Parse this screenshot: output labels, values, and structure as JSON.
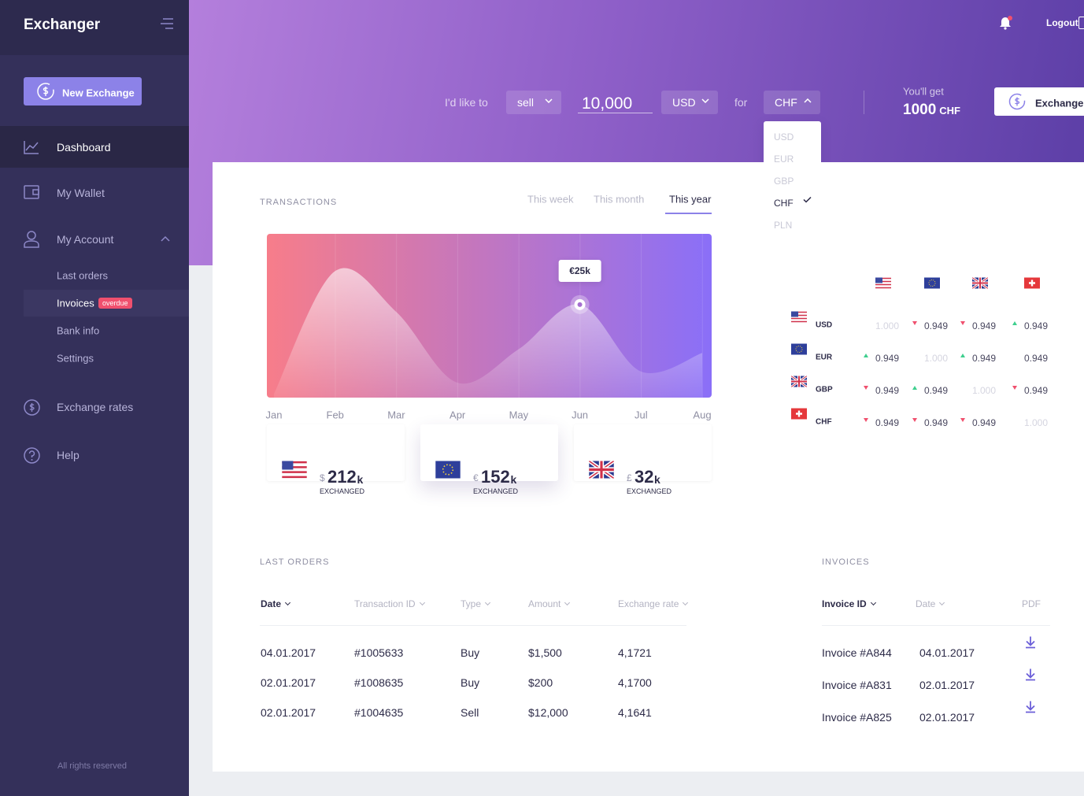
{
  "sidebar": {
    "brand": "Exchanger",
    "new_exchange": "New Exchange",
    "nav": [
      "Dashboard",
      "My Wallet",
      "My Account"
    ],
    "account_sub": [
      "Last orders",
      "Invoices",
      "Bank info",
      "Settings"
    ],
    "badge": "overdue",
    "nav_bottom": [
      "Exchange rates",
      "Help"
    ],
    "footer": "All rights reserved"
  },
  "header": {
    "logout": "Logout",
    "prompt": "I'd like to",
    "action": "sell",
    "amount": "10,000",
    "currency": "USD",
    "for": "for",
    "target": "CHF",
    "dropdown": [
      "USD",
      "EUR",
      "GBP",
      "CHF",
      "PLN"
    ],
    "youll_get": "You'll get",
    "result_amount": "1000",
    "result_currency": "CHF",
    "exchange_button": "Exchange"
  },
  "tabs": [
    "This week",
    "This month",
    "This year"
  ],
  "chart_data": {
    "type": "area",
    "title": "TRANSACTIONS",
    "categories": [
      "Jan",
      "Feb",
      "Mar",
      "Apr",
      "May",
      "Jun",
      "Jul",
      "Aug"
    ],
    "values": [
      1,
      34,
      23,
      4,
      13,
      25,
      7,
      12
    ],
    "value_labels": [
      null,
      null,
      null,
      null,
      null,
      "€25k",
      null,
      null
    ],
    "ylim": [
      0,
      44
    ],
    "colors": [
      "#f77d8a",
      "#8a6ff8"
    ]
  },
  "stats": [
    {
      "symbol": "$",
      "amount": "212",
      "suffix": "k",
      "label": "EXCHANGED"
    },
    {
      "symbol": "€",
      "amount": "152",
      "suffix": "k",
      "label": "EXCHANGED"
    },
    {
      "symbol": "£",
      "amount": "32",
      "suffix": "k",
      "label": "EXCHANGED"
    }
  ],
  "rates": [
    {
      "currency": "USD",
      "cells": [
        {
          "text": "1.000",
          "muted": true
        },
        {
          "text": "0.949",
          "trend": "down"
        },
        {
          "text": "0.949",
          "trend": "down"
        },
        {
          "text": "0.949",
          "trend": "up"
        }
      ]
    },
    {
      "currency": "EUR",
      "cells": [
        {
          "text": "0.949",
          "trend": "up"
        },
        {
          "text": "1.000",
          "muted": true
        },
        {
          "text": "0.949",
          "trend": "up"
        },
        {
          "text": "0.949"
        }
      ]
    },
    {
      "currency": "GBP",
      "cells": [
        {
          "text": "0.949",
          "trend": "down"
        },
        {
          "text": "0.949",
          "trend": "up"
        },
        {
          "text": "1.000",
          "muted": true
        },
        {
          "text": "0.949",
          "trend": "down"
        }
      ]
    },
    {
      "currency": "CHF",
      "cells": [
        {
          "text": "0.949",
          "trend": "down"
        },
        {
          "text": "0.949",
          "trend": "down"
        },
        {
          "text": "0.949",
          "trend": "down"
        },
        {
          "text": "1.000",
          "muted": true
        }
      ]
    }
  ],
  "last_orders": {
    "title": "LAST ORDERS",
    "columns": [
      "Date",
      "Transaction ID",
      "Type",
      "Amount",
      "Exchange rate"
    ],
    "rows": [
      [
        "04.01.2017",
        "#1005633",
        "Buy",
        "$1,500",
        "4,1721"
      ],
      [
        "02.01.2017",
        "#1008635",
        "Buy",
        "$200",
        "4,1700"
      ],
      [
        "02.01.2017",
        "#1004635",
        "Sell",
        "$12,000",
        "4,1641"
      ]
    ]
  },
  "invoices": {
    "title": "INVOICES",
    "columns": [
      "Invoice ID",
      "Date",
      "PDF"
    ],
    "rows": [
      [
        "Invoice #A844",
        "04.01.2017"
      ],
      [
        "Invoice #A831",
        "02.01.2017"
      ],
      [
        "Invoice #A825",
        "02.01.2017"
      ]
    ]
  }
}
